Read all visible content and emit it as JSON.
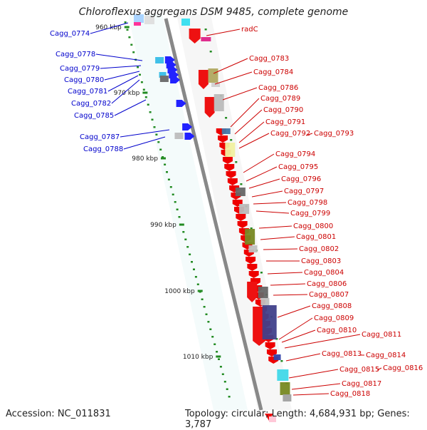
{
  "title": "Chloroflexus aggregans DSM 9485, complete genome",
  "accession": "Accession: NC_011831",
  "summary": "Topology: circular; Length: 4,684,931 bp; Genes: 3,787",
  "colors": {
    "plus_label": "#0000cc",
    "minus_label": "#cc0000",
    "backbone": "#888888",
    "tick": "#228b22"
  },
  "scale_labels": [
    "960 kbp",
    "970 kbp",
    "980 kbp",
    "990 kbp",
    "1000 kbp",
    "1010 kbp"
  ],
  "plus_genes": [
    "Cagg_0774",
    "Cagg_0778",
    "Cagg_0779",
    "Cagg_0780",
    "Cagg_0781",
    "Cagg_0782",
    "Cagg_0785",
    "Cagg_0787",
    "Cagg_0788"
  ],
  "minus_genes": [
    "radC",
    "Cagg_0783",
    "Cagg_0784",
    "Cagg_0786",
    "Cagg_0789",
    "Cagg_0790",
    "Cagg_0791",
    "Cagg_0792",
    "Cagg_0793",
    "Cagg_0794",
    "Cagg_0795",
    "Cagg_0796",
    "Cagg_0797",
    "Cagg_0798",
    "Cagg_0799",
    "Cagg_0800",
    "Cagg_0801",
    "Cagg_0802",
    "Cagg_0803",
    "Cagg_0804",
    "Cagg_0806",
    "Cagg_0807",
    "Cagg_0808",
    "Cagg_0809",
    "Cagg_0810",
    "Cagg_0811",
    "Cagg_0813",
    "Cagg_0814",
    "Cagg_0815",
    "Cagg_0816",
    "Cagg_0817",
    "Cagg_0818"
  ]
}
